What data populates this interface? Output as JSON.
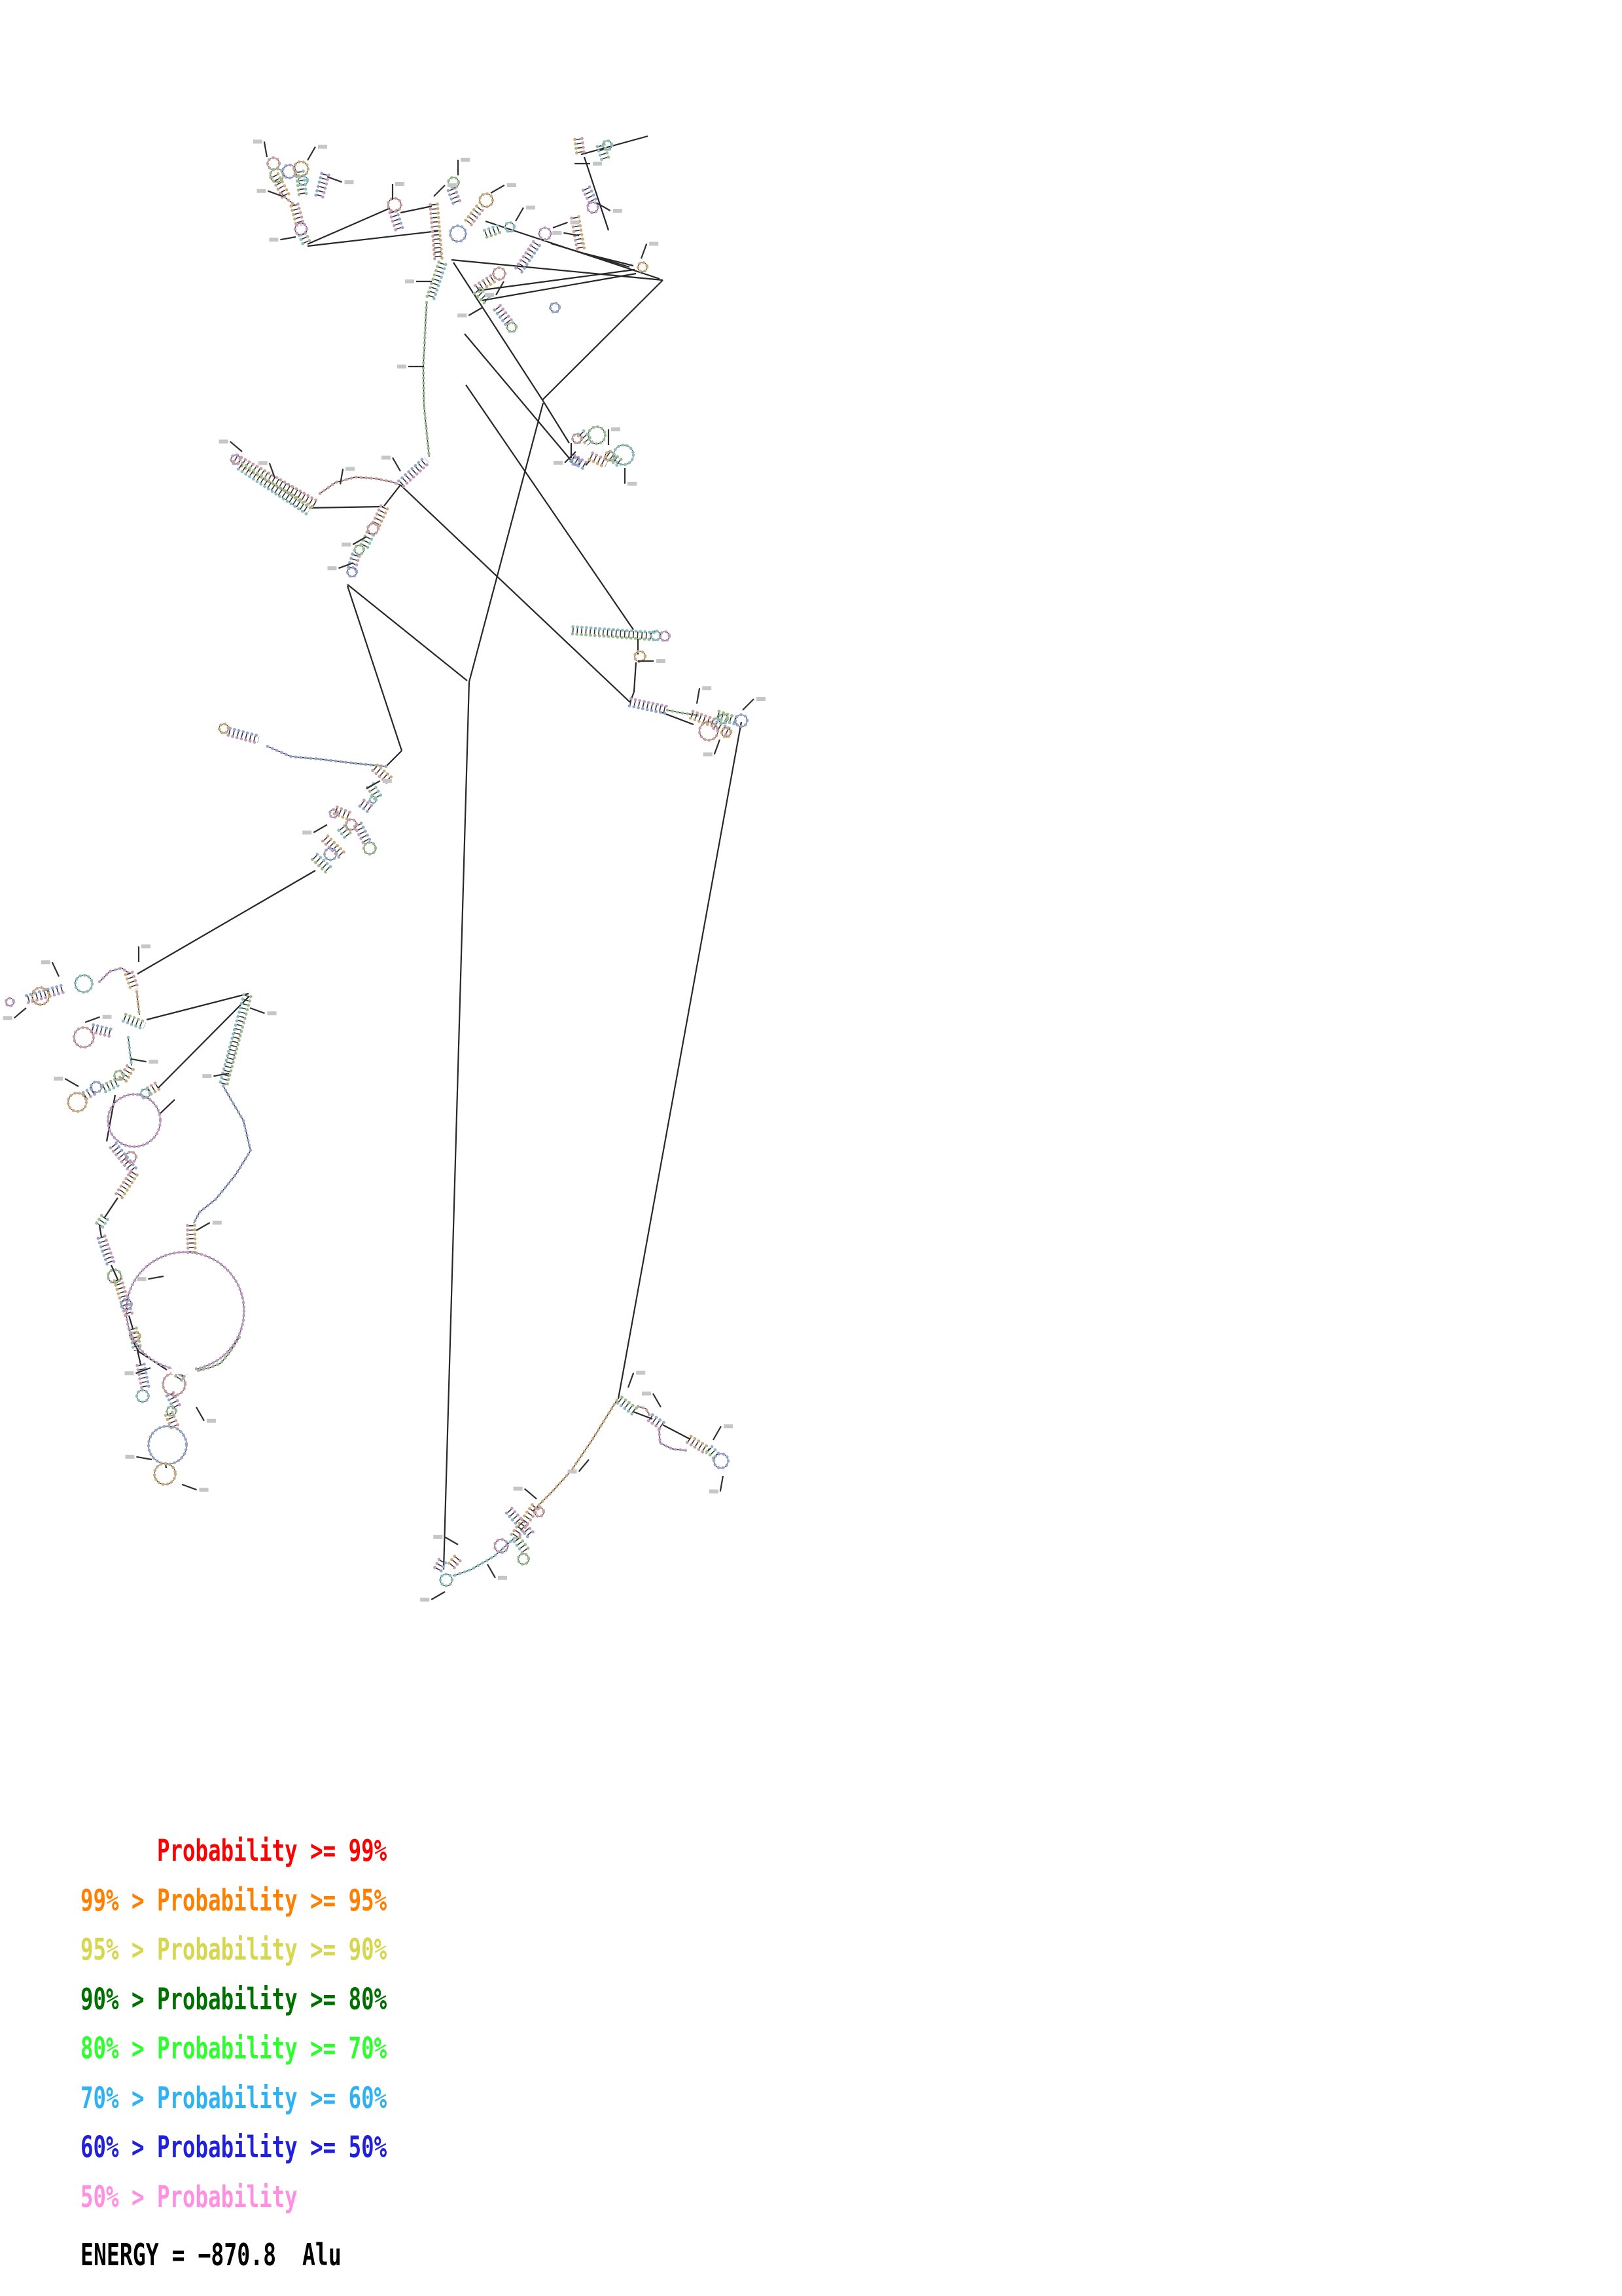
{
  "legend": {
    "rows": [
      {
        "text": "      Probability >= 99%",
        "color": "#ff0000"
      },
      {
        "text": "99% > Probability >= 95%",
        "color": "#ff7f00"
      },
      {
        "text": "95% > Probability >= 90%",
        "color": "#d6d64f"
      },
      {
        "text": "90% > Probability >= 80%",
        "color": "#007000"
      },
      {
        "text": "80% > Probability >= 70%",
        "color": "#2dff2d"
      },
      {
        "text": "70% > Probability >= 60%",
        "color": "#30b2f2"
      },
      {
        "text": "60% > Probability >= 50%",
        "color": "#2121dd"
      },
      {
        "text": "50% > Probability",
        "color": "#ff8fe1"
      }
    ]
  },
  "energy": {
    "text": "ENERGY = −870.8  Alu"
  },
  "structure": {
    "line_color": "#282828",
    "palette": [
      "#c99f9f",
      "#9dbb92",
      "#97a6cc",
      "#c9ab7f",
      "#8fbcbc",
      "#bf9cc2"
    ],
    "connectors": [
      [
        690,
        397,
        1013,
        428
      ],
      [
        1013,
        428,
        829,
        611
      ],
      [
        829,
        611,
        693,
        401
      ],
      [
        742,
        338,
        1008,
        426
      ],
      [
        888,
        236,
        990,
        208
      ],
      [
        893,
        240,
        930,
        352
      ],
      [
        888,
        386,
        968,
        406
      ],
      [
        842,
        372,
        962,
        408
      ],
      [
        970,
        412,
        730,
        444
      ],
      [
        972,
        418,
        737,
        459
      ],
      [
        829,
        611,
        870,
        677
      ],
      [
        710,
        510,
        875,
        706
      ],
      [
        873,
        677,
        873,
        700
      ],
      [
        895,
        711,
        903,
        702
      ],
      [
        717,
        1042,
        830,
        616
      ],
      [
        717,
        1042,
        678,
        2398
      ],
      [
        531,
        893,
        714,
        1040
      ],
      [
        531,
        895,
        614,
        1147
      ],
      [
        614,
        1147,
        590,
        1171
      ],
      [
        482,
        1330,
        210,
        1488
      ],
      [
        224,
        1558,
        380,
        1518
      ],
      [
        242,
        1662,
        381,
        1522
      ],
      [
        176,
        1673,
        163,
        1744
      ],
      [
        267,
        1680,
        244,
        1702
      ],
      [
        470,
        373,
        596,
        318
      ],
      [
        612,
        325,
        660,
        315
      ],
      [
        470,
        376,
        669,
        353
      ],
      [
        472,
        776,
        586,
        774
      ],
      [
        612,
        741,
        587,
        773
      ],
      [
        612,
        741,
        963,
        1073
      ],
      [
        712,
        588,
        968,
        962
      ],
      [
        1133,
        1103,
        945,
        2137
      ],
      [
        968,
        2157,
        997,
        2168
      ],
      [
        1013,
        2177,
        1055,
        2199
      ],
      [
        1010,
        1088,
        1060,
        1107
      ],
      [
        975,
        976,
        975,
        1000
      ],
      [
        972,
        1012,
        969,
        1057
      ],
      [
        969,
        1057,
        963,
        1073
      ],
      [
        180,
        1830,
        160,
        1860
      ],
      [
        152,
        1872,
        155,
        1890
      ],
      [
        170,
        1933,
        180,
        1955
      ],
      [
        197,
        2010,
        203,
        2030
      ],
      [
        210,
        2063,
        215,
        2085
      ],
      [
        253,
        2237,
        254,
        2243
      ],
      [
        198,
        2040,
        212,
        2065
      ],
      [
        212,
        2065,
        255,
        2093
      ]
    ],
    "strands": [
      [
        [
          489,
          754
        ],
        [
          513,
          737
        ],
        [
          543,
          729
        ],
        [
          573,
          731
        ],
        [
          598,
          736
        ],
        [
          612,
          741
        ]
      ],
      [
        [
          652,
          462
        ],
        [
          647,
          560
        ],
        [
          648,
          620
        ],
        [
          656,
          698
        ]
      ],
      [
        [
          341,
          1659
        ],
        [
          353,
          1680
        ],
        [
          372,
          1712
        ],
        [
          383,
          1758
        ],
        [
          360,
          1795
        ],
        [
          330,
          1832
        ],
        [
          305,
          1852
        ],
        [
          296,
          1869
        ]
      ],
      [
        [
          943,
          2139
        ],
        [
          905,
          2200
        ],
        [
          873,
          2247
        ],
        [
          843,
          2280
        ],
        [
          815,
          2308
        ]
      ],
      [
        [
          786,
          2350
        ],
        [
          755,
          2378
        ],
        [
          720,
          2398
        ],
        [
          692,
          2408
        ]
      ],
      [
        [
          1007,
          2184
        ],
        [
          1009,
          2205
        ],
        [
          1028,
          2214
        ],
        [
          1049,
          2216
        ]
      ],
      [
        [
          975,
          2149
        ],
        [
          987,
          2152
        ],
        [
          993,
          2163
        ]
      ],
      [
        [
          1020,
          1085
        ],
        [
          1040,
          1089
        ],
        [
          1067,
          1093
        ]
      ],
      [
        [
          590,
          1171
        ],
        [
          540,
          1166
        ],
        [
          490,
          1160
        ],
        [
          445,
          1156
        ],
        [
          408,
          1140
        ]
      ],
      [
        [
          209,
          1515
        ],
        [
          213,
          1551
        ]
      ],
      [
        [
          196,
          1585
        ],
        [
          201,
          1628
        ]
      ],
      [
        [
          152,
          1500
        ],
        [
          168,
          1484
        ],
        [
          186,
          1479
        ],
        [
          197,
          1487
        ]
      ],
      [
        [
          430,
          295
        ],
        [
          437,
          303
        ],
        [
          444,
          308
        ],
        [
          450,
          313
        ]
      ],
      [
        [
          366,
          2043
        ],
        [
          350,
          2068
        ],
        [
          337,
          2083
        ],
        [
          320,
          2090
        ],
        [
          303,
          2094
        ]
      ]
    ],
    "helices": [
      [
        420,
        268,
        437,
        300
      ],
      [
        458,
        262,
        463,
        300
      ],
      [
        497,
        266,
        488,
        300
      ],
      [
        450,
        313,
        459,
        345
      ],
      [
        462,
        357,
        470,
        375
      ],
      [
        601,
        323,
        610,
        350
      ],
      [
        663,
        312,
        670,
        396
      ],
      [
        676,
        402,
        657,
        458
      ],
      [
        690,
        289,
        699,
        312
      ],
      [
        733,
        318,
        716,
        340
      ],
      [
        762,
        350,
        740,
        358
      ],
      [
        820,
        372,
        792,
        414
      ],
      [
        753,
        426,
        729,
        441
      ],
      [
        729,
        444,
        744,
        459
      ],
      [
        760,
        470,
        780,
        496
      ],
      [
        884,
        212,
        887,
        234
      ],
      [
        918,
        222,
        926,
        246
      ],
      [
        896,
        288,
        906,
        308
      ],
      [
        879,
        332,
        888,
        384
      ],
      [
        888,
        662,
        902,
        677
      ],
      [
        875,
        700,
        895,
        712
      ],
      [
        903,
        697,
        927,
        709
      ],
      [
        929,
        694,
        947,
        707
      ],
      [
        613,
        739,
        652,
        703
      ],
      [
        587,
        775,
        575,
        801
      ],
      [
        566,
        815,
        556,
        836
      ],
      [
        544,
        848,
        537,
        870
      ],
      [
        360,
        700,
        482,
        770
      ],
      [
        367,
        712,
        472,
        781
      ],
      [
        350,
        1118,
        395,
        1130
      ],
      [
        573,
        1173,
        595,
        1192
      ],
      [
        566,
        1200,
        578,
        1219
      ],
      [
        553,
        1227,
        567,
        1237
      ],
      [
        513,
        1238,
        537,
        1248
      ],
      [
        522,
        1265,
        534,
        1280
      ],
      [
        547,
        1260,
        562,
        1289
      ],
      [
        497,
        1281,
        522,
        1306
      ],
      [
        481,
        1309,
        502,
        1329
      ],
      [
        95,
        1511,
        40,
        1527
      ],
      [
        197,
        1487,
        206,
        1512
      ],
      [
        190,
        1555,
        221,
        1567
      ],
      [
        141,
        1571,
        173,
        1579
      ],
      [
        199,
        1631,
        188,
        1649
      ],
      [
        178,
        1654,
        155,
        1665
      ],
      [
        142,
        1667,
        125,
        1677
      ],
      [
        228,
        1667,
        241,
        1659
      ],
      [
        378,
        1521,
        341,
        1659
      ],
      [
        173,
        1750,
        205,
        1790
      ],
      [
        205,
        1792,
        180,
        1830
      ],
      [
        160,
        1860,
        152,
        1872
      ],
      [
        155,
        1890,
        170,
        1933
      ],
      [
        180,
        1955,
        197,
        2010
      ],
      [
        203,
        2030,
        210,
        2063
      ],
      [
        215,
        2085,
        222,
        2120
      ],
      [
        292,
        1872,
        293,
        1916
      ],
      [
        281,
        2094,
        272,
        2107
      ],
      [
        260,
        2130,
        270,
        2150
      ],
      [
        258,
        2160,
        267,
        2180
      ],
      [
        947,
        2139,
        972,
        2158
      ],
      [
        994,
        2166,
        1013,
        2179
      ],
      [
        1053,
        2199,
        1082,
        2217
      ],
      [
        1084,
        2214,
        1096,
        2226
      ],
      [
        778,
        2308,
        812,
        2346
      ],
      [
        818,
        2302,
        786,
        2348
      ],
      [
        790,
        2352,
        805,
        2372
      ],
      [
        676,
        2385,
        668,
        2400
      ],
      [
        690,
        2392,
        700,
        2380
      ],
      [
        875,
        963,
        1000,
        972
      ],
      [
        963,
        1073,
        1020,
        1085
      ],
      [
        1057,
        1092,
        1093,
        1105
      ],
      [
        1097,
        1092,
        1127,
        1102
      ],
      [
        1093,
        1108,
        1117,
        1120
      ]
    ],
    "loops": [
      [
        418,
        250,
        9
      ],
      [
        423,
        268,
        10
      ],
      [
        442,
        262,
        10
      ],
      [
        460,
        258,
        11
      ],
      [
        463,
        276,
        7
      ],
      [
        460,
        350,
        9
      ],
      [
        603,
        313,
        10
      ],
      [
        693,
        279,
        8
      ],
      [
        700,
        357,
        12
      ],
      [
        743,
        306,
        10
      ],
      [
        779,
        347,
        7
      ],
      [
        833,
        357,
        9
      ],
      [
        763,
        418,
        9
      ],
      [
        782,
        500,
        7
      ],
      [
        848,
        470,
        7
      ],
      [
        982,
        408,
        7
      ],
      [
        928,
        222,
        7
      ],
      [
        906,
        317,
        8
      ],
      [
        882,
        670,
        7
      ],
      [
        912,
        665,
        13
      ],
      [
        880,
        705,
        6
      ],
      [
        932,
        697,
        7
      ],
      [
        953,
        695,
        15
      ],
      [
        360,
        702,
        7
      ],
      [
        570,
        808,
        8
      ],
      [
        549,
        840,
        7
      ],
      [
        538,
        874,
        7
      ],
      [
        342,
        1113,
        7
      ],
      [
        570,
        1222,
        5
      ],
      [
        510,
        1243,
        6
      ],
      [
        537,
        1260,
        8
      ],
      [
        565,
        1296,
        9
      ],
      [
        505,
        1305,
        9
      ],
      [
        62,
        1522,
        13
      ],
      [
        128,
        1503,
        13
      ],
      [
        15,
        1531,
        6
      ],
      [
        128,
        1585,
        15
      ],
      [
        182,
        1643,
        7
      ],
      [
        147,
        1661,
        8
      ],
      [
        118,
        1684,
        14
      ],
      [
        222,
        1671,
        7
      ],
      [
        205,
        1712,
        40
      ],
      [
        200,
        1768,
        8
      ],
      [
        175,
        1950,
        10
      ],
      [
        193,
        1993,
        8
      ],
      [
        207,
        2042,
        7
      ],
      [
        218,
        2133,
        9
      ],
      [
        283,
        2003,
        90
      ],
      [
        266,
        2115,
        17
      ],
      [
        262,
        2156,
        7
      ],
      [
        256,
        2208,
        29
      ],
      [
        252,
        2252,
        16
      ],
      [
        682,
        2414,
        9
      ],
      [
        766,
        2362,
        10
      ],
      [
        824,
        2310,
        7
      ],
      [
        800,
        2382,
        8
      ],
      [
        1102,
        2232,
        11
      ],
      [
        978,
        1003,
        8
      ],
      [
        1002,
        971,
        7
      ],
      [
        1016,
        972,
        7
      ],
      [
        1083,
        1117,
        14
      ],
      [
        1105,
        1098,
        7
      ],
      [
        1133,
        1101,
        9
      ],
      [
        1110,
        1119,
        7
      ]
    ],
    "gaps": [
      [
        262,
        2094,
        298,
        2094
      ]
    ],
    "ticks": [
      [
        408,
        240,
        -100
      ],
      [
        470,
        245,
        -60
      ],
      [
        500,
        270,
        20
      ],
      [
        432,
        300,
        -160
      ],
      [
        452,
        362,
        170
      ],
      [
        600,
        305,
        -90
      ],
      [
        663,
        300,
        -45
      ],
      [
        700,
        268,
        -90
      ],
      [
        750,
        295,
        -30
      ],
      [
        788,
        338,
        -60
      ],
      [
        845,
        348,
        -20
      ],
      [
        770,
        430,
        120
      ],
      [
        737,
        470,
        150
      ],
      [
        660,
        430,
        180
      ],
      [
        648,
        560,
        180
      ],
      [
        612,
        720,
        -120
      ],
      [
        520,
        740,
        -80
      ],
      [
        420,
        730,
        -110
      ],
      [
        370,
        690,
        -140
      ],
      [
        560,
        820,
        150
      ],
      [
        540,
        860,
        160
      ],
      [
        878,
        250,
        0
      ],
      [
        912,
        310,
        30
      ],
      [
        885,
        360,
        -170
      ],
      [
        980,
        395,
        -70
      ],
      [
        930,
        680,
        -90
      ],
      [
        955,
        715,
        90
      ],
      [
        880,
        690,
        135
      ],
      [
        975,
        1010,
        0
      ],
      [
        1065,
        1075,
        -80
      ],
      [
        1100,
        1130,
        110
      ],
      [
        1135,
        1085,
        -45
      ],
      [
        560,
        1205,
        -30
      ],
      [
        500,
        1260,
        150
      ],
      [
        212,
        1470,
        -90
      ],
      [
        90,
        1492,
        -115
      ],
      [
        40,
        1540,
        140
      ],
      [
        130,
        1562,
        -20
      ],
      [
        200,
        1618,
        10
      ],
      [
        120,
        1660,
        -150
      ],
      [
        382,
        1540,
        20
      ],
      [
        350,
        1640,
        170
      ],
      [
        250,
        1950,
        170
      ],
      [
        300,
        1880,
        -30
      ],
      [
        230,
        2090,
        160
      ],
      [
        300,
        2150,
        60
      ],
      [
        232,
        2230,
        -170
      ],
      [
        278,
        2268,
        20
      ],
      [
        700,
        2360,
        -150
      ],
      [
        745,
        2390,
        60
      ],
      [
        820,
        2290,
        -140
      ],
      [
        900,
        2230,
        130
      ],
      [
        960,
        2120,
        -70
      ],
      [
        1010,
        2150,
        -120
      ],
      [
        1090,
        2200,
        -60
      ],
      [
        1105,
        2255,
        100
      ],
      [
        680,
        2432,
        150
      ]
    ]
  }
}
